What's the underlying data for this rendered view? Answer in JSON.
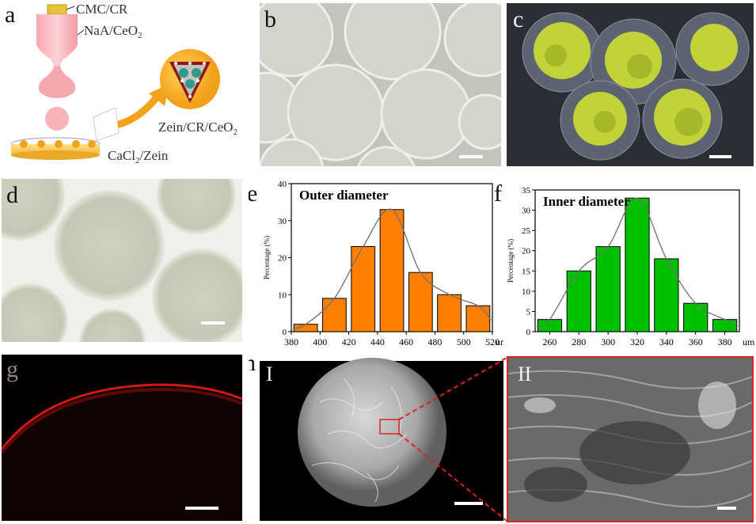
{
  "panel_labels": {
    "a": "a",
    "b": "b",
    "c": "c",
    "d": "d",
    "e": "e",
    "f": "f",
    "g": "g",
    "h": "h",
    "h1": "I",
    "h2": "II"
  },
  "schematic": {
    "label_cmc": "CMC/CR",
    "label_naa_base": "NaA/CeO",
    "label_naa_sub": "2",
    "label_zein_base": "Zein/CR/CeO",
    "label_zein_sub": "2",
    "label_cacl_base": "CaCl",
    "label_cacl_sub": "2",
    "label_cacl_rest": "/Zein"
  },
  "colors": {
    "orange_bar": "#ff8000",
    "green_bar": "#00c000",
    "fit_line": "#707070",
    "sem_box": "#e02020"
  },
  "chart_data": [
    {
      "type": "bar",
      "title": "Outer diameter",
      "ylabel": "Percentage (%)",
      "unit": "um",
      "x": [
        390,
        410,
        430,
        450,
        470,
        490,
        510
      ],
      "values": [
        2,
        9,
        23,
        33,
        16,
        10,
        7
      ],
      "xlim": [
        380,
        520
      ],
      "ylim": [
        0,
        40
      ],
      "xticks": [
        "380",
        "400",
        "420",
        "440",
        "460",
        "480",
        "500",
        "520"
      ],
      "yticks": [
        "0",
        "10",
        "20",
        "30",
        "40"
      ],
      "fit_curve": true
    },
    {
      "type": "bar",
      "title": "Inner diameter",
      "ylabel": "Percentage (%)",
      "unit": "um",
      "x": [
        260,
        280,
        300,
        320,
        340,
        360,
        380
      ],
      "values": [
        3,
        15,
        21,
        33,
        18,
        7,
        3
      ],
      "xlim": [
        250,
        390
      ],
      "ylim": [
        0,
        35
      ],
      "xticks": [
        "260",
        "280",
        "300",
        "320",
        "340",
        "360",
        "380"
      ],
      "yticks": [
        "0",
        "5",
        "10",
        "15",
        "20",
        "25",
        "30",
        "35"
      ],
      "fit_curve": true
    }
  ]
}
